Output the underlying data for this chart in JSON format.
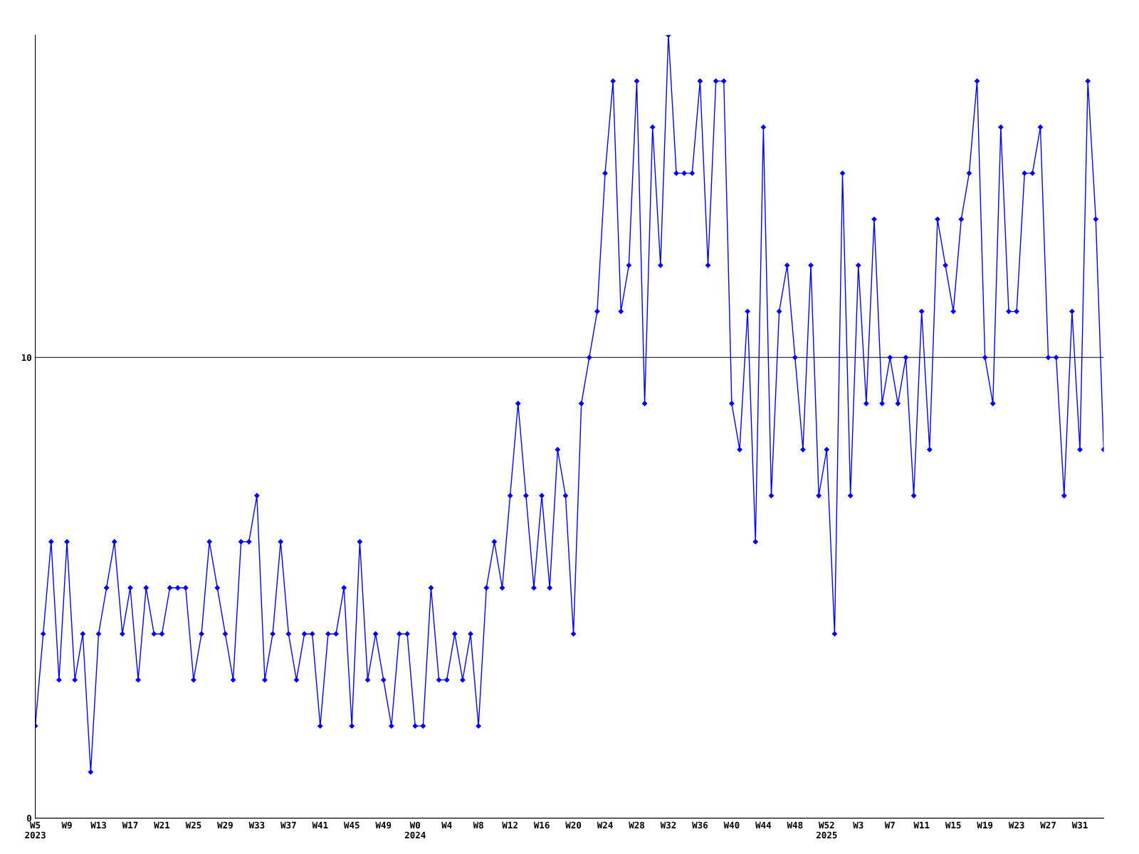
{
  "chart_data": {
    "type": "line",
    "ylim": [
      0,
      17
    ],
    "yticks": [
      0,
      10
    ],
    "grid": "y",
    "marker": "diamond",
    "line_style": "solid",
    "categories": [
      "W5\n2023",
      null,
      null,
      null,
      "W9",
      null,
      null,
      null,
      "W13",
      null,
      null,
      null,
      "W17",
      null,
      null,
      null,
      "W21",
      null,
      null,
      null,
      "W25",
      null,
      null,
      null,
      "W29",
      null,
      null,
      null,
      "W33",
      null,
      null,
      null,
      "W37",
      null,
      null,
      null,
      "W41",
      null,
      null,
      null,
      "W45",
      null,
      null,
      null,
      "W49",
      null,
      null,
      null,
      "W0\n2024",
      null,
      null,
      null,
      "W4",
      null,
      null,
      null,
      "W8",
      null,
      null,
      null,
      "W12",
      null,
      null,
      null,
      "W16",
      null,
      null,
      null,
      "W20",
      null,
      null,
      null,
      "W24",
      null,
      null,
      null,
      "W28",
      null,
      null,
      null,
      "W32",
      null,
      null,
      null,
      "W36",
      null,
      null,
      null,
      "W40",
      null,
      null,
      null,
      "W44",
      null,
      null,
      null,
      "W48",
      null,
      null,
      null,
      "W52\n2025",
      null,
      null,
      null,
      "W3",
      null,
      null,
      null,
      "W7",
      null,
      null,
      null,
      "W11",
      null,
      null,
      null,
      "W15",
      null,
      null,
      null,
      "W19",
      null,
      null,
      null,
      "W23",
      null,
      null,
      null,
      "W27",
      null,
      null,
      null,
      "W31",
      null,
      null,
      null
    ],
    "series": [
      {
        "color": "#0000ff",
        "values": [
          2,
          4,
          6,
          3,
          6,
          3,
          4,
          1,
          4,
          5,
          6,
          4,
          5,
          3,
          5,
          4,
          4,
          5,
          5,
          5,
          3,
          4,
          6,
          5,
          4,
          3,
          6,
          6,
          7,
          3,
          4,
          6,
          4,
          3,
          4,
          4,
          2,
          4,
          4,
          5,
          2,
          6,
          3,
          4,
          3,
          2,
          4,
          4,
          2,
          2,
          5,
          3,
          3,
          4,
          3,
          4,
          2,
          5,
          6,
          5,
          7,
          9,
          7,
          5,
          7,
          5,
          8,
          7,
          4,
          9,
          10,
          11,
          14,
          16,
          11,
          12,
          16,
          9,
          15,
          12,
          17,
          14,
          14,
          14,
          16,
          12,
          16,
          16,
          9,
          8,
          11,
          6,
          15,
          7,
          11,
          12,
          10,
          8,
          12,
          7,
          8,
          4,
          14,
          7,
          12,
          9,
          13,
          9,
          10,
          9,
          10,
          7,
          11,
          8,
          13,
          12,
          11,
          13,
          14,
          16,
          10,
          9,
          15,
          11,
          11,
          14,
          14,
          15,
          10,
          10,
          7,
          11,
          8,
          16,
          13,
          8
        ]
      }
    ]
  }
}
